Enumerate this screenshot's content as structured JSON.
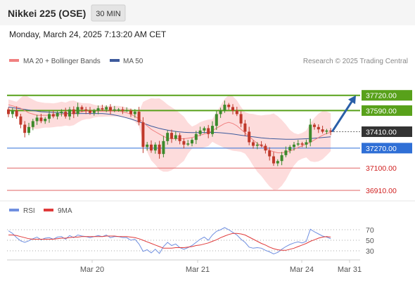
{
  "header": {
    "title": "Nikkei 225 (OSE)",
    "timeframe": "30 MIN",
    "datetime": "Monday, March 24, 2025 7:13:20 AM CET"
  },
  "legend": {
    "ma20_bb": "MA 20 + Bollinger Bands",
    "ma50": "MA 50",
    "credit": "Research © 2025 Trading Central",
    "rsi": "RSI",
    "rsi_ma": "9MA"
  },
  "colors": {
    "bb_band": "#fdd6d6",
    "ma20": "#f08080",
    "ma50": "#3d5a9c",
    "resistance": "#58a11a",
    "pivot": "#2f6fd6",
    "support": "#e06464",
    "last": "#333333",
    "arrow": "#2a5fa8",
    "candle_up": "#3d8a2c",
    "candle_down": "#c0392b",
    "rsi": "#6f8fe0",
    "rsi_ma": "#e03a3a"
  },
  "chart_data": [
    {
      "type": "candlestick",
      "name": "price",
      "y_range": [
        36850,
        37790
      ],
      "time_axis": {
        "labels": [
          "Mar 20",
          "Mar 21",
          "Mar 24",
          "Mar 31"
        ]
      },
      "levels": [
        {
          "value": 37720,
          "label": "37720.00",
          "kind": "resistance"
        },
        {
          "value": 37590,
          "label": "37590.00",
          "kind": "resistance"
        },
        {
          "value": 37410,
          "label": "37410.00",
          "kind": "last"
        },
        {
          "value": 37270,
          "label": "37270.00",
          "kind": "pivot"
        },
        {
          "value": 37100,
          "label": "37100.00",
          "kind": "support"
        },
        {
          "value": 36910,
          "label": "36910.00",
          "kind": "support"
        }
      ],
      "arrow": {
        "from": 37410,
        "to": 37720,
        "direction": "up"
      },
      "close": [
        37560,
        37590,
        37540,
        37470,
        37400,
        37450,
        37500,
        37530,
        37500,
        37520,
        37560,
        37540,
        37570,
        37580,
        37540,
        37600,
        37560,
        37620,
        37600,
        37590,
        37570,
        37590,
        37610,
        37600,
        37620,
        37590,
        37600,
        37600,
        37590,
        37590,
        37560,
        37580,
        37490,
        37280,
        37300,
        37250,
        37300,
        37220,
        37330,
        37400,
        37350,
        37380,
        37330,
        37300,
        37310,
        37340,
        37390,
        37420,
        37440,
        37390,
        37460,
        37560,
        37590,
        37640,
        37620,
        37590,
        37560,
        37480,
        37410,
        37320,
        37290,
        37300,
        37290,
        37250,
        37200,
        37140,
        37160,
        37210,
        37250,
        37280,
        37300,
        37310,
        37300,
        37320,
        37470,
        37450,
        37430,
        37410,
        37420,
        37410
      ],
      "ma20": [
        37640,
        37630,
        37620,
        37610,
        37590,
        37570,
        37560,
        37550,
        37550,
        37550,
        37550,
        37550,
        37555,
        37560,
        37560,
        37565,
        37570,
        37575,
        37580,
        37585,
        37585,
        37585,
        37585,
        37585,
        37585,
        37585,
        37585,
        37585,
        37580,
        37570,
        37560,
        37540,
        37520,
        37490,
        37460,
        37430,
        37410,
        37390,
        37370,
        37355,
        37350,
        37350,
        37350,
        37350,
        37355,
        37360,
        37370,
        37380,
        37390,
        37400,
        37420,
        37440,
        37460,
        37480,
        37490,
        37480,
        37460,
        37430,
        37400,
        37370,
        37340,
        37310,
        37290,
        37270,
        37250,
        37240,
        37230,
        37230,
        37235,
        37245,
        37260,
        37275,
        37290,
        37305,
        37320,
        37340,
        37360,
        37380,
        37395,
        37405
      ],
      "ma50": [
        37620,
        37615,
        37610,
        37605,
        37600,
        37595,
        37590,
        37585,
        37580,
        37578,
        37576,
        37574,
        37572,
        37570,
        37568,
        37566,
        37565,
        37565,
        37565,
        37565,
        37565,
        37565,
        37565,
        37565,
        37562,
        37558,
        37552,
        37545,
        37537,
        37528,
        37518,
        37507,
        37495,
        37482,
        37470,
        37458,
        37448,
        37438,
        37430,
        37423,
        37417,
        37412,
        37408,
        37405,
        37403,
        37402,
        37402,
        37402,
        37403,
        37403,
        37404,
        37403,
        37401,
        37398,
        37394,
        37390,
        37385,
        37380,
        37375,
        37370,
        37366,
        37362,
        37358,
        37355,
        37352,
        37350,
        37348,
        37347,
        37346,
        37346,
        37346,
        37347,
        37348,
        37350,
        37352,
        37355,
        37358,
        37361,
        37364,
        37367
      ]
    },
    {
      "type": "line",
      "name": "rsi",
      "y_range": [
        10,
        90
      ],
      "y_ticks": [
        70,
        50,
        30
      ],
      "series": [
        {
          "name": "RSI",
          "values": [
            68,
            63,
            55,
            49,
            46,
            49,
            53,
            56,
            51,
            54,
            55,
            52,
            56,
            57,
            52,
            59,
            55,
            60,
            58,
            57,
            55,
            57,
            59,
            57,
            60,
            55,
            57,
            57,
            55,
            55,
            50,
            52,
            43,
            29,
            32,
            26,
            33,
            25,
            38,
            46,
            40,
            43,
            36,
            33,
            36,
            40,
            46,
            52,
            56,
            50,
            60,
            67,
            70,
            74,
            70,
            65,
            60,
            52,
            46,
            37,
            35,
            36,
            35,
            31,
            28,
            24,
            27,
            33,
            38,
            42,
            45,
            47,
            45,
            48,
            71,
            66,
            62,
            58,
            56,
            53
          ]
        },
        {
          "name": "9MA",
          "values": [
            60,
            60,
            59,
            57,
            55,
            53,
            52,
            52,
            52,
            52,
            52,
            52,
            53,
            54,
            54,
            55,
            56,
            56,
            57,
            57,
            57,
            57,
            57,
            57,
            58,
            58,
            58,
            57,
            57,
            57,
            56,
            55,
            53,
            50,
            47,
            44,
            41,
            38,
            35,
            35,
            35,
            36,
            36,
            36,
            37,
            38,
            40,
            41,
            43,
            45,
            48,
            51,
            55,
            58,
            61,
            63,
            63,
            62,
            60,
            56,
            52,
            48,
            44,
            41,
            37,
            34,
            32,
            31,
            31,
            33,
            35,
            38,
            41,
            44,
            48,
            51,
            54,
            56,
            57,
            56
          ]
        }
      ]
    }
  ]
}
